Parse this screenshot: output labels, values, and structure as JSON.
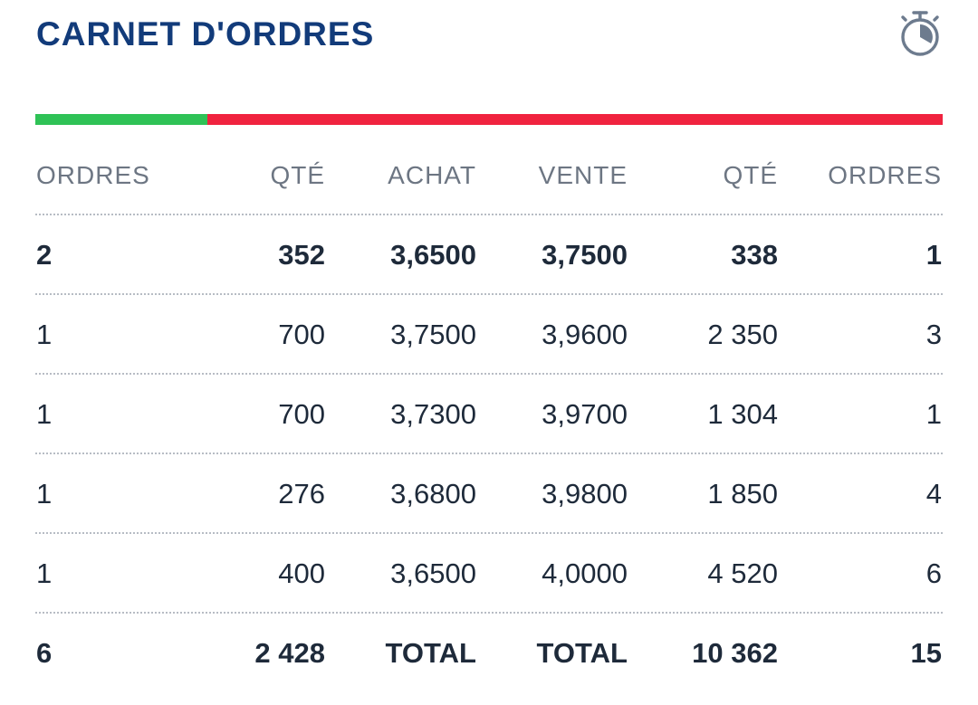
{
  "header": {
    "title": "CARNET D'ORDRES",
    "timer_icon": "stopwatch-icon"
  },
  "bar": {
    "buy_ratio": 0.19,
    "buy_color": "#2fc256",
    "sell_color": "#f0233f"
  },
  "table": {
    "columns": [
      "ORDRES",
      "QTÉ",
      "ACHAT",
      "VENTE",
      "QTÉ",
      "ORDRES"
    ],
    "rows": [
      [
        "2",
        "352",
        "3,6500",
        "3,7500",
        "338",
        "1"
      ],
      [
        "1",
        "700",
        "3,7500",
        "3,9600",
        "2 350",
        "3"
      ],
      [
        "1",
        "700",
        "3,7300",
        "3,9700",
        "1 304",
        "1"
      ],
      [
        "1",
        "276",
        "3,6800",
        "3,9800",
        "1 850",
        "4"
      ],
      [
        "1",
        "400",
        "3,6500",
        "4,0000",
        "4 520",
        "6"
      ]
    ],
    "total": [
      "6",
      "2 428",
      "TOTAL",
      "TOTAL",
      "10 362",
      "15"
    ]
  }
}
